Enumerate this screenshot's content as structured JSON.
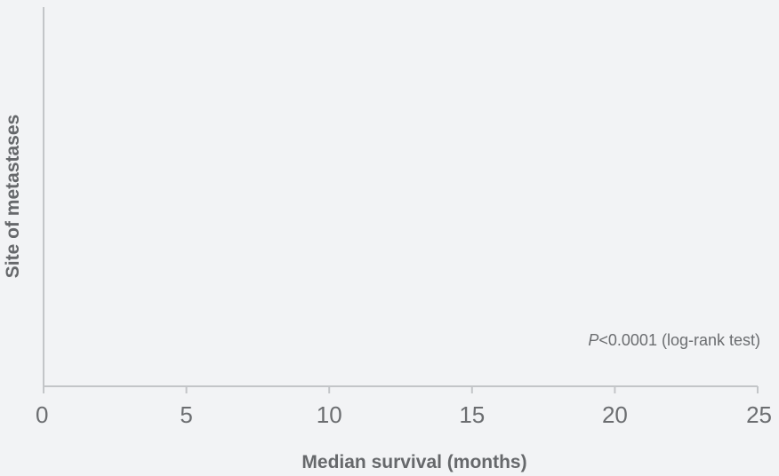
{
  "chart_data": {
    "type": "bar",
    "title": "",
    "xlabel": "Median survival (months)",
    "ylabel": "Site of metastases",
    "xlim": [
      0,
      25
    ],
    "xticks": [
      0,
      5,
      10,
      15,
      20,
      25
    ],
    "xtick_labels": [
      "0",
      "5",
      "10",
      "15",
      "20",
      "25"
    ],
    "categories": [],
    "values": [],
    "grid": false,
    "annotation": {
      "p_symbol": "P",
      "text": "<0.0001 (log-rank test)"
    },
    "colors": {
      "background": "#f2f3f5",
      "axis": "#c3c5c8",
      "text": "#6b6d70"
    }
  }
}
